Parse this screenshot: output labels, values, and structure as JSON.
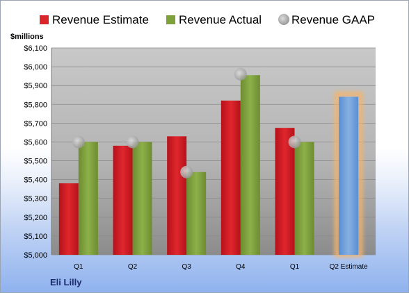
{
  "company": "Eli Lilly",
  "chart_data": {
    "type": "bar",
    "ylabel": "$millions",
    "ylim": [
      5000,
      6100
    ],
    "ytick_step": 100,
    "grid": true,
    "legend_position": "top",
    "categories": [
      "Q1",
      "Q2",
      "Q3",
      "Q4",
      "Q1",
      "Q2 Estimate"
    ],
    "series": [
      {
        "name": "Revenue Estimate",
        "color": "#d9262c",
        "values": [
          5380,
          5580,
          5630,
          5820,
          5675,
          null
        ]
      },
      {
        "name": "Revenue Actual",
        "color": "#7fa13c",
        "values": [
          5600,
          5600,
          5440,
          5955,
          5600,
          null
        ]
      },
      {
        "name": "Revenue GAAP",
        "color": "#b5b5b5",
        "marker": "circle",
        "values": [
          5600,
          5600,
          5440,
          5960,
          5600,
          null
        ]
      }
    ],
    "estimate_bar": {
      "category": "Q2 Estimate",
      "value": 5840,
      "color": "#6f9fd8",
      "glow": "#f6b46b"
    }
  }
}
